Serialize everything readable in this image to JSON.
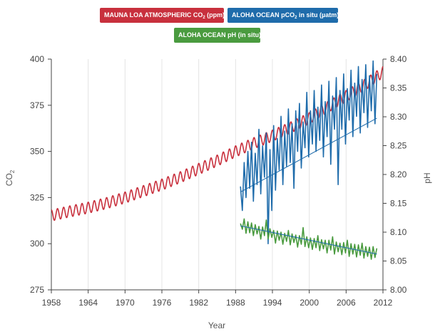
{
  "legend": {
    "co2": {
      "prefix": "MAUNA LOA ATMOSPHERIC CO",
      "sub": "2",
      "suffix": " (ppm)",
      "color": "#c8303d"
    },
    "pco2": {
      "prefix": "ALOHA OCEAN pCO",
      "sub": "2",
      "suffix": " in situ (µatm)",
      "color": "#1f6cab"
    },
    "ph": {
      "text": "ALOHA OCEAN pH (in situ)",
      "color": "#4a9b3f"
    }
  },
  "chart_data": {
    "type": "line",
    "xlabel": "Year",
    "ylabel_left": {
      "text": "CO",
      "sub": "2"
    },
    "ylabel_right": "pH",
    "xlim": [
      1958,
      2012
    ],
    "ylim_left": [
      275,
      400
    ],
    "ylim_right": [
      8.0,
      8.4
    ],
    "x_ticks": [
      "1958",
      "1964",
      "1970",
      "1976",
      "1982",
      "1988",
      "1994",
      "2000",
      "2006",
      "2012"
    ],
    "y_left_ticks": [
      "275",
      "300",
      "325",
      "350",
      "375",
      "400"
    ],
    "y_right_ticks": [
      "8.00",
      "8.05",
      "8.10",
      "8.15",
      "8.20",
      "8.25",
      "8.30",
      "8.35",
      "8.40"
    ],
    "grid": "vertical",
    "series": [
      {
        "name": "MAUNA LOA ATMOSPHERIC CO2 (ppm)",
        "axis": "left",
        "color": "#c8303d",
        "seasonal_amplitude": 3.0,
        "x": [
          1958,
          1961,
          1964,
          1967,
          1970,
          1973,
          1976,
          1979,
          1982,
          1985,
          1988,
          1991,
          1994,
          1997,
          2000,
          2003,
          2006,
          2009,
          2012
        ],
        "y": [
          315.3,
          317.5,
          319.5,
          322.0,
          325.0,
          328.5,
          332.0,
          336.0,
          340.5,
          345.0,
          350.0,
          354.5,
          358.5,
          363.0,
          368.0,
          374.0,
          380.0,
          386.0,
          393.0
        ]
      },
      {
        "name": "ALOHA OCEAN pCO2 in situ (µatm)",
        "axis": "left",
        "color": "#1f6cab",
        "x": [
          1988.8,
          1989.1,
          1989.4,
          1989.7,
          1990.0,
          1990.3,
          1990.6,
          1990.9,
          1991.2,
          1991.5,
          1991.8,
          1992.1,
          1992.4,
          1992.7,
          1993.0,
          1993.3,
          1993.6,
          1993.9,
          1994.2,
          1994.5,
          1994.8,
          1995.1,
          1995.4,
          1995.7,
          1996.0,
          1996.3,
          1996.6,
          1996.9,
          1997.2,
          1997.5,
          1997.8,
          1998.1,
          1998.4,
          1998.7,
          1999.0,
          1999.3,
          1999.6,
          1999.9,
          2000.2,
          2000.5,
          2000.8,
          2001.1,
          2001.4,
          2001.7,
          2002.0,
          2002.3,
          2002.6,
          2002.9,
          2003.2,
          2003.5,
          2003.8,
          2004.1,
          2004.4,
          2004.7,
          2005.0,
          2005.3,
          2005.6,
          2005.9,
          2006.2,
          2006.5,
          2006.8,
          2007.1,
          2007.4,
          2007.7,
          2008.0,
          2008.3,
          2008.6,
          2008.9,
          2009.2,
          2009.5,
          2009.8,
          2010.1,
          2010.4,
          2010.7,
          2011.0
        ],
        "y": [
          331,
          318,
          344,
          325,
          350,
          330,
          355,
          323,
          349,
          332,
          362,
          327,
          353,
          336,
          360,
          300,
          351,
          318,
          364,
          329,
          357,
          340,
          369,
          332,
          361,
          342,
          373,
          344,
          365,
          330,
          372,
          350,
          376,
          341,
          366,
          352,
          382,
          347,
          372,
          354,
          383,
          350,
          374,
          356,
          386,
          347,
          377,
          358,
          388,
          343,
          380,
          362,
          390,
          332,
          383,
          362,
          392,
          354,
          384,
          367,
          394,
          358,
          387,
          369,
          396,
          360,
          389,
          371,
          397,
          363,
          391,
          372,
          399,
          365,
          392
        ]
      },
      {
        "name": "ALOHA OCEAN pH (in situ)",
        "axis": "right",
        "color": "#4a9b3f",
        "x": [
          1988.8,
          1989.1,
          1989.4,
          1989.7,
          1990.0,
          1990.3,
          1990.6,
          1990.9,
          1991.2,
          1991.5,
          1991.8,
          1992.1,
          1992.4,
          1992.7,
          1993.0,
          1993.3,
          1993.6,
          1993.9,
          1994.2,
          1994.5,
          1994.8,
          1995.1,
          1995.4,
          1995.7,
          1996.0,
          1996.3,
          1996.6,
          1996.9,
          1997.2,
          1997.5,
          1997.8,
          1998.1,
          1998.4,
          1998.7,
          1999.0,
          1999.3,
          1999.6,
          1999.9,
          2000.2,
          2000.5,
          2000.8,
          2001.1,
          2001.4,
          2001.7,
          2002.0,
          2002.3,
          2002.6,
          2002.9,
          2003.2,
          2003.5,
          2003.8,
          2004.1,
          2004.4,
          2004.7,
          2005.0,
          2005.3,
          2005.6,
          2005.9,
          2006.2,
          2006.5,
          2006.8,
          2007.1,
          2007.4,
          2007.7,
          2008.0,
          2008.3,
          2008.6,
          2008.9,
          2009.2,
          2009.5,
          2009.8,
          2010.1,
          2010.4,
          2010.7,
          2011.0
        ],
        "y": [
          8.115,
          8.105,
          8.123,
          8.098,
          8.118,
          8.099,
          8.116,
          8.094,
          8.113,
          8.097,
          8.11,
          8.088,
          8.109,
          8.094,
          8.121,
          8.088,
          8.106,
          8.091,
          8.103,
          8.081,
          8.102,
          8.086,
          8.1,
          8.079,
          8.098,
          8.084,
          8.103,
          8.078,
          8.097,
          8.082,
          8.095,
          8.074,
          8.094,
          8.079,
          8.108,
          8.075,
          8.092,
          8.073,
          8.09,
          8.07,
          8.089,
          8.073,
          8.094,
          8.068,
          8.087,
          8.071,
          8.086,
          8.064,
          8.086,
          8.069,
          8.092,
          8.062,
          8.083,
          8.066,
          8.081,
          8.061,
          8.082,
          8.064,
          8.086,
          8.058,
          8.08,
          8.062,
          8.079,
          8.057,
          8.078,
          8.06,
          8.081,
          8.055,
          8.075,
          8.058,
          8.074,
          8.053,
          8.075,
          8.056,
          8.072
        ]
      }
    ],
    "trend_lines": [
      {
        "of": "ALOHA OCEAN pCO2 in situ (µatm)",
        "axis": "left",
        "x": [
          1988.8,
          2011.0
        ],
        "y": [
          328,
          368
        ],
        "color": "#1f6cab"
      },
      {
        "of": "ALOHA OCEAN pH (in situ)",
        "axis": "right",
        "x": [
          1988.8,
          2011.0
        ],
        "y": [
          8.111,
          8.062
        ],
        "color": "#1f6cab"
      }
    ]
  }
}
